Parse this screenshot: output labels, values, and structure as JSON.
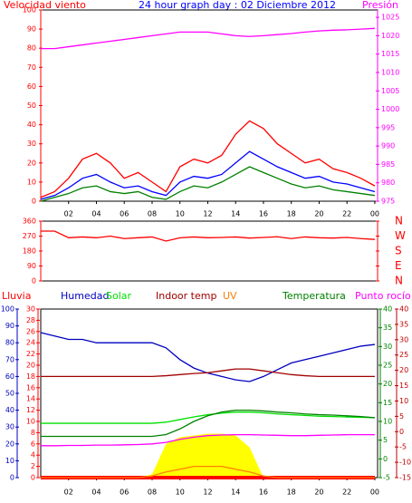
{
  "chart_data": [
    {
      "type": "line",
      "title": "24 hour graph day : 02 Diciembre 2012",
      "ylabel": "Velocidad viento",
      "y2label": "Presión",
      "title_color": "#0000ff",
      "ycolor": "#ff0000",
      "y2color": "#ff00ff",
      "x": [
        0,
        1,
        2,
        3,
        4,
        5,
        6,
        7,
        8,
        9,
        10,
        11,
        12,
        13,
        14,
        15,
        16,
        17,
        18,
        19,
        20,
        21,
        22,
        23,
        24
      ],
      "xlim": [
        0,
        24.2
      ],
      "xticks": [
        {
          "value": 2,
          "label": "02"
        },
        {
          "value": 4,
          "label": "04"
        },
        {
          "value": 6,
          "label": "06"
        },
        {
          "value": 8,
          "label": "08"
        },
        10,
        12,
        14,
        16,
        18,
        20,
        22,
        {
          "value": 24,
          "label": "00"
        }
      ],
      "ylim": [
        0,
        100
      ],
      "yticks": [
        0,
        10,
        20,
        30,
        40,
        50,
        60,
        70,
        80,
        90,
        100
      ],
      "y2lim": [
        975,
        1027
      ],
      "y2ticks": [
        975,
        980,
        985,
        990,
        995,
        1000,
        1005,
        1010,
        1015,
        1020,
        1025
      ],
      "series": [
        {
          "color": "#ff0000",
          "values": [
            2,
            5,
            12,
            22,
            25,
            20,
            12,
            15,
            10,
            5,
            18,
            22,
            20,
            24,
            35,
            42,
            38,
            30,
            25,
            20,
            22,
            17,
            15,
            12,
            8
          ]
        },
        {
          "color": "#0000ff",
          "values": [
            1,
            3,
            7,
            12,
            14,
            10,
            7,
            8,
            5,
            3,
            10,
            13,
            12,
            14,
            20,
            26,
            22,
            18,
            15,
            12,
            13,
            10,
            9,
            7,
            5
          ]
        },
        {
          "color": "#008000",
          "values": [
            0,
            2,
            4,
            7,
            8,
            5,
            4,
            5,
            2,
            1,
            5,
            8,
            7,
            10,
            14,
            18,
            15,
            12,
            9,
            7,
            8,
            6,
            5,
            4,
            3
          ]
        },
        {
          "color": "#ff00ff",
          "axis": "y2",
          "values": [
            1016.5,
            1016.5,
            1017,
            1017.5,
            1018,
            1018.5,
            1019,
            1019.5,
            1020,
            1020.5,
            1021,
            1021,
            1021,
            1020.5,
            1020,
            1019.8,
            1020,
            1020.3,
            1020.6,
            1021,
            1021.3,
            1021.5,
            1021.6,
            1021.8,
            1022
          ]
        }
      ]
    },
    {
      "type": "line",
      "ycolor": "#ff0000",
      "y2color": "#ff0000",
      "x": [
        0,
        1,
        2,
        3,
        4,
        5,
        6,
        7,
        8,
        9,
        10,
        11,
        12,
        13,
        14,
        15,
        16,
        17,
        18,
        19,
        20,
        21,
        22,
        23,
        24
      ],
      "xlim": [
        0,
        24.2
      ],
      "ylim": [
        0,
        360
      ],
      "yticks": [
        0,
        90,
        180,
        270,
        360
      ],
      "y2lim": [
        0,
        360
      ],
      "y2ticks": [
        {
          "value": 360,
          "label": "N"
        },
        {
          "value": 270,
          "label": "W"
        },
        {
          "value": 180,
          "label": "S"
        },
        {
          "value": 90,
          "label": "E"
        },
        {
          "value": 0,
          "label": "N"
        }
      ],
      "series": [
        {
          "color": "#ff0000",
          "values": [
            300,
            300,
            260,
            265,
            260,
            270,
            255,
            260,
            265,
            240,
            260,
            265,
            260,
            262,
            265,
            258,
            262,
            266,
            255,
            265,
            260,
            258,
            262,
            255,
            250
          ]
        }
      ]
    },
    {
      "type": "line",
      "x": [
        0,
        1,
        2,
        3,
        4,
        5,
        6,
        7,
        8,
        9,
        10,
        11,
        12,
        13,
        14,
        15,
        16,
        17,
        18,
        19,
        20,
        21,
        22,
        23,
        24
      ],
      "xlim": [
        0,
        24.2
      ],
      "xticks": [
        {
          "value": 2,
          "label": "02"
        },
        {
          "value": 4,
          "label": "04"
        },
        {
          "value": 6,
          "label": "06"
        },
        {
          "value": 8,
          "label": "08"
        },
        10,
        12,
        14,
        16,
        18,
        20,
        22,
        {
          "value": 24,
          "label": "00"
        }
      ],
      "axes": [
        {
          "side": "left",
          "color": "#0000c0",
          "lim": [
            0,
            100
          ],
          "ticks": [
            0,
            10,
            20,
            30,
            40,
            50,
            60,
            70,
            80,
            90,
            100
          ]
        },
        {
          "side": "left",
          "color": "#ff0000",
          "lim": [
            0,
            30
          ],
          "ticks": [
            0,
            2,
            4,
            6,
            8,
            10,
            12,
            14,
            16,
            18,
            20,
            22,
            24,
            26,
            28,
            30
          ]
        },
        {
          "side": "right",
          "color": "#008000",
          "lim": [
            -5,
            40
          ],
          "ticks": [
            -5,
            0,
            5,
            10,
            15,
            20,
            25,
            30,
            35,
            40
          ]
        },
        {
          "side": "right",
          "color": "#c00000",
          "lim": [
            -15,
            40
          ],
          "ticks": [
            -15,
            -10,
            -5,
            0,
            5,
            10,
            15,
            20,
            25,
            30,
            35,
            40
          ]
        }
      ],
      "fill": {
        "color": "#ffff00",
        "axis": 0,
        "values": [
          0,
          0,
          0,
          0,
          0,
          0,
          0,
          0,
          2,
          20,
          24,
          25,
          26,
          26,
          25,
          18,
          0,
          0,
          0,
          0,
          0,
          0,
          0,
          0,
          0
        ]
      },
      "series": [
        {
          "name": "Lluvia",
          "color": "#ff0000",
          "axis": 1,
          "values": [
            0,
            0,
            0,
            0,
            0,
            0,
            0,
            0,
            0,
            0,
            0,
            0,
            0,
            0,
            0,
            0,
            0,
            0,
            0,
            0,
            0,
            0,
            0,
            0,
            0
          ]
        },
        {
          "name": "Humedad",
          "color": "#0000c0",
          "axis": 0,
          "values": [
            86,
            84,
            82,
            82,
            80,
            80,
            80,
            80,
            80,
            77,
            70,
            65,
            62,
            60,
            58,
            57,
            60,
            64,
            68,
            70,
            72,
            74,
            76,
            78,
            79
          ]
        },
        {
          "name": "Solar",
          "color": "#00e000",
          "axis": 2,
          "values": [
            9.5,
            9.5,
            9.5,
            9.5,
            9.5,
            9.5,
            9.5,
            9.5,
            9.5,
            9.8,
            10.5,
            11.2,
            11.8,
            12.2,
            12.5,
            12.5,
            12.3,
            12,
            11.8,
            11.6,
            11.4,
            11.3,
            11.2,
            11.1,
            11
          ]
        },
        {
          "name": "Indoor temp",
          "color": "#a00000",
          "axis": 2,
          "values": [
            22,
            22,
            22,
            22,
            22,
            22,
            22,
            22,
            22,
            22.2,
            22.5,
            22.8,
            23,
            23.5,
            24,
            24,
            23.5,
            23,
            22.5,
            22.2,
            22,
            22,
            22,
            22,
            22
          ]
        },
        {
          "name": "UV",
          "color": "#ff8000",
          "axis": 1,
          "values": [
            0,
            0,
            0,
            0,
            0,
            0,
            0,
            0,
            0.3,
            1,
            1.5,
            2,
            2,
            2,
            1.5,
            1,
            0.3,
            0,
            0,
            0,
            0,
            0,
            0,
            0,
            0
          ]
        },
        {
          "name": "Temperatura",
          "color": "#008000",
          "axis": 2,
          "values": [
            6,
            6,
            6,
            6,
            6,
            6,
            6,
            6,
            6,
            6.5,
            8,
            10,
            11.5,
            12.5,
            13,
            13,
            12.8,
            12.5,
            12.3,
            12,
            11.8,
            11.7,
            11.5,
            11.3,
            11
          ]
        },
        {
          "name": "Punto rocío",
          "color": "#ff00ff",
          "axis": 3,
          "values": [
            -4.6,
            -4.6,
            -4.5,
            -4.5,
            -4.4,
            -4.4,
            -4.3,
            -4.2,
            -4,
            -3.5,
            -2.5,
            -1.8,
            -1.3,
            -1.1,
            -1,
            -1,
            -1.1,
            -1.2,
            -1.3,
            -1.3,
            -1.2,
            -1.1,
            -1,
            -1,
            -1
          ]
        }
      ]
    }
  ]
}
